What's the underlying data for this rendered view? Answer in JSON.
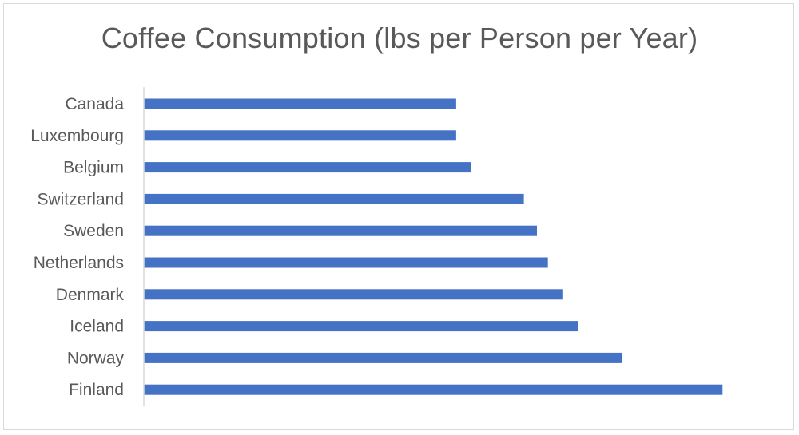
{
  "chart_data": {
    "type": "bar",
    "orientation": "horizontal",
    "title": "Coffee Consumption (lbs per Person per Year)",
    "categories": [
      "Canada",
      "Luxembourg",
      "Belgium",
      "Switzerland",
      "Sweden",
      "Netherlands",
      "Denmark",
      "Iceland",
      "Norway",
      "Finland"
    ],
    "values": [
      14.3,
      14.3,
      15.0,
      17.4,
      18.0,
      18.5,
      19.2,
      19.9,
      21.9,
      26.5
    ],
    "bar_color": "#4472c4",
    "axis_color": "#d9d9d9",
    "xlim": [
      0,
      30
    ],
    "grid": false,
    "legend": "none",
    "show_value_axis": false
  }
}
